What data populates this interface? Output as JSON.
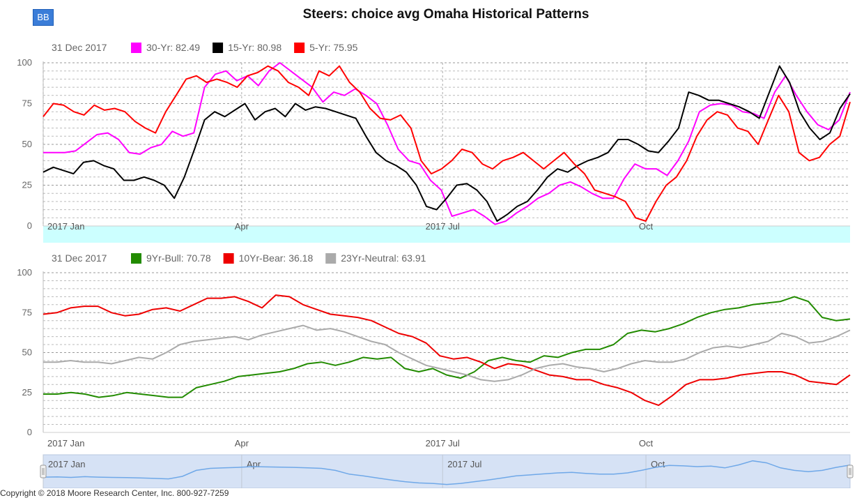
{
  "header": {
    "logo": "BB",
    "title": "Steers: choice avg Omaha Historical Patterns"
  },
  "footer": {
    "text": "Copyright © 2018 Moore Research Center, Inc. 800-927-7259"
  },
  "chart_data": [
    {
      "type": "line",
      "legend_date": "31 Dec 2017",
      "ylim": [
        0,
        100
      ],
      "yticks": [
        0,
        25,
        50,
        75,
        100
      ],
      "xticks": [
        {
          "label": "2017 Jan",
          "t": 0.0
        },
        {
          "label": "Apr",
          "t": 0.246
        },
        {
          "label": "2017 Jul",
          "t": 0.495
        },
        {
          "label": "Oct",
          "t": 0.747
        }
      ],
      "series": [
        {
          "name": "30-Yr",
          "legend": "30-Yr: 82.49",
          "color": "#ff00ff",
          "width": 2,
          "values": [
            45,
            45,
            45,
            46,
            51,
            56,
            57,
            53,
            45,
            44,
            48,
            50,
            58,
            55,
            57,
            85,
            93,
            95,
            89,
            92,
            86,
            95,
            100,
            95,
            90,
            85,
            76,
            82,
            80,
            84,
            80,
            75,
            62,
            47,
            40,
            38,
            28,
            22,
            6,
            8,
            10,
            6,
            1,
            3,
            8,
            12,
            17,
            20,
            25,
            27,
            24,
            20,
            17,
            17,
            29,
            38,
            35,
            35,
            31,
            40,
            52,
            70,
            74,
            75,
            74,
            70,
            69,
            66,
            82,
            92,
            80,
            70,
            62,
            59,
            65,
            82
          ]
        },
        {
          "name": "15-Yr",
          "legend": "15-Yr: 80.98",
          "color": "#000000",
          "width": 2,
          "values": [
            33,
            36,
            34,
            32,
            39,
            40,
            37,
            35,
            28,
            28,
            30,
            28,
            25,
            17,
            30,
            47,
            65,
            70,
            67,
            71,
            75,
            65,
            70,
            72,
            67,
            75,
            71,
            73,
            72,
            70,
            68,
            66,
            55,
            45,
            40,
            37,
            33,
            25,
            12,
            10,
            17,
            25,
            26,
            22,
            15,
            3,
            7,
            12,
            15,
            22,
            30,
            35,
            33,
            37,
            40,
            42,
            45,
            53,
            53,
            50,
            46,
            45,
            52,
            60,
            82,
            80,
            77,
            77,
            75,
            73,
            70,
            66,
            82,
            98,
            88,
            70,
            60,
            53,
            57,
            72,
            81
          ]
        },
        {
          "name": "5-Yr",
          "legend": "5-Yr: 75.95",
          "color": "#ff0000",
          "width": 2,
          "values": [
            67,
            75,
            74,
            70,
            68,
            74,
            71,
            72,
            70,
            64,
            60,
            57,
            70,
            80,
            90,
            92,
            88,
            90,
            88,
            85,
            92,
            94,
            98,
            95,
            88,
            85,
            80,
            95,
            92,
            98,
            88,
            82,
            72,
            66,
            65,
            68,
            60,
            40,
            32,
            35,
            40,
            47,
            45,
            38,
            35,
            40,
            42,
            45,
            40,
            35,
            40,
            45,
            38,
            32,
            22,
            20,
            18,
            15,
            5,
            3,
            15,
            25,
            30,
            40,
            55,
            65,
            70,
            68,
            60,
            58,
            50,
            65,
            80,
            70,
            45,
            40,
            42,
            50,
            55,
            76
          ]
        }
      ]
    },
    {
      "type": "line",
      "legend_date": "31 Dec 2017",
      "ylim": [
        0,
        100
      ],
      "yticks": [
        0,
        25,
        50,
        75,
        100
      ],
      "xticks": [
        {
          "label": "2017 Jan",
          "t": 0.0
        },
        {
          "label": "Apr",
          "t": 0.246
        },
        {
          "label": "2017 Jul",
          "t": 0.495
        },
        {
          "label": "Oct",
          "t": 0.747
        }
      ],
      "series": [
        {
          "name": "9Yr-Bull",
          "legend": "9Yr-Bull: 70.78",
          "color": "#228b00",
          "width": 2,
          "values": [
            24,
            24,
            25,
            24,
            22,
            23,
            25,
            24,
            23,
            22,
            22,
            28,
            30,
            32,
            35,
            36,
            37,
            38,
            40,
            43,
            44,
            42,
            44,
            47,
            46,
            47,
            40,
            38,
            40,
            36,
            34,
            38,
            45,
            47,
            45,
            44,
            48,
            47,
            50,
            52,
            52,
            55,
            62,
            64,
            63,
            65,
            68,
            72,
            75,
            77,
            78,
            80,
            81,
            82,
            85,
            82,
            72,
            70,
            71
          ]
        },
        {
          "name": "10Yr-Bear",
          "legend": "10Yr-Bear: 36.18",
          "color": "#ee0000",
          "width": 2,
          "values": [
            74,
            75,
            78,
            79,
            79,
            75,
            73,
            74,
            77,
            78,
            76,
            80,
            84,
            84,
            85,
            82,
            78,
            86,
            85,
            80,
            77,
            74,
            73,
            72,
            70,
            66,
            62,
            60,
            56,
            48,
            46,
            47,
            44,
            40,
            43,
            42,
            39,
            36,
            35,
            33,
            33,
            30,
            28,
            25,
            20,
            17,
            23,
            30,
            33,
            33,
            34,
            36,
            37,
            38,
            38,
            36,
            32,
            31,
            30,
            36
          ]
        },
        {
          "name": "23Yr-Neutral",
          "legend": "23Yr-Neutral: 63.91",
          "color": "#aaaaaa",
          "width": 2,
          "values": [
            44,
            44,
            45,
            44,
            44,
            43,
            45,
            47,
            46,
            50,
            55,
            57,
            58,
            59,
            60,
            58,
            61,
            63,
            65,
            67,
            64,
            65,
            63,
            60,
            57,
            55,
            50,
            46,
            42,
            40,
            38,
            36,
            33,
            32,
            33,
            36,
            40,
            42,
            43,
            41,
            40,
            38,
            40,
            43,
            45,
            44,
            44,
            46,
            50,
            53,
            54,
            53,
            55,
            57,
            62,
            60,
            56,
            57,
            60,
            64
          ]
        }
      ]
    },
    {
      "type": "area",
      "role": "navigator",
      "xticks": [
        {
          "label": "2017 Jan",
          "t": 0.0
        },
        {
          "label": "Apr",
          "t": 0.246
        },
        {
          "label": "2017 Jul",
          "t": 0.495
        },
        {
          "label": "Oct",
          "t": 0.747
        }
      ],
      "values": [
        33,
        34,
        32,
        35,
        33,
        32,
        31,
        30,
        28,
        26,
        36,
        60,
        68,
        70,
        72,
        75,
        74,
        73,
        72,
        70,
        68,
        60,
        45,
        38,
        30,
        22,
        15,
        10,
        8,
        4,
        8,
        15,
        22,
        30,
        38,
        42,
        46,
        50,
        52,
        48,
        45,
        45,
        50,
        60,
        72,
        80,
        78,
        75,
        77,
        70,
        82,
        98,
        90,
        70,
        60,
        55,
        60,
        72,
        81
      ]
    }
  ]
}
